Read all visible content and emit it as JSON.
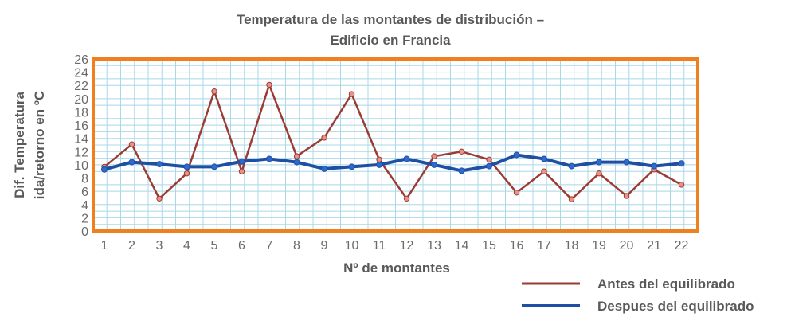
{
  "chart_data": {
    "type": "line",
    "title_line1": "Temperatura de las montantes de distribución –",
    "title_line2": "Edificio en Francia",
    "xlabel": "Nº de montantes",
    "ylabel_line1": "Dif. Temperatura",
    "ylabel_line2": "ida/retorno en ºC",
    "ylim": [
      0,
      26
    ],
    "yticks": [
      0,
      2,
      4,
      6,
      8,
      10,
      12,
      14,
      16,
      18,
      20,
      22,
      24,
      26
    ],
    "categories": [
      "1",
      "2",
      "3",
      "4",
      "5",
      "6",
      "7",
      "8",
      "9",
      "10",
      "11",
      "12",
      "13",
      "14",
      "15",
      "16",
      "17",
      "18",
      "19",
      "20",
      "21",
      "22"
    ],
    "grid": true,
    "legend_position": "bottom-right",
    "series": [
      {
        "name": "Antes del equilibrado",
        "color": "#9b3b33",
        "marker_color": "#e8938a",
        "values": [
          9.7,
          13.1,
          4.9,
          8.7,
          21.1,
          9.0,
          22.1,
          11.3,
          14.1,
          20.7,
          10.8,
          4.9,
          11.3,
          12.0,
          10.8,
          5.8,
          9.0,
          4.8,
          8.7,
          5.3,
          9.3,
          7.0
        ]
      },
      {
        "name": "Despues del equilibrado",
        "color": "#1f4fa3",
        "marker_color": "#2e6ad0",
        "values": [
          9.3,
          10.4,
          10.1,
          9.7,
          9.7,
          10.5,
          10.9,
          10.4,
          9.4,
          9.7,
          10.0,
          10.9,
          10.0,
          9.1,
          9.8,
          11.5,
          10.9,
          9.8,
          10.4,
          10.4,
          9.8,
          10.2
        ]
      }
    ],
    "colors": {
      "frame": "#f07f1e",
      "grid": "#a9d8e8",
      "plot_bg": "#ffffff"
    }
  }
}
